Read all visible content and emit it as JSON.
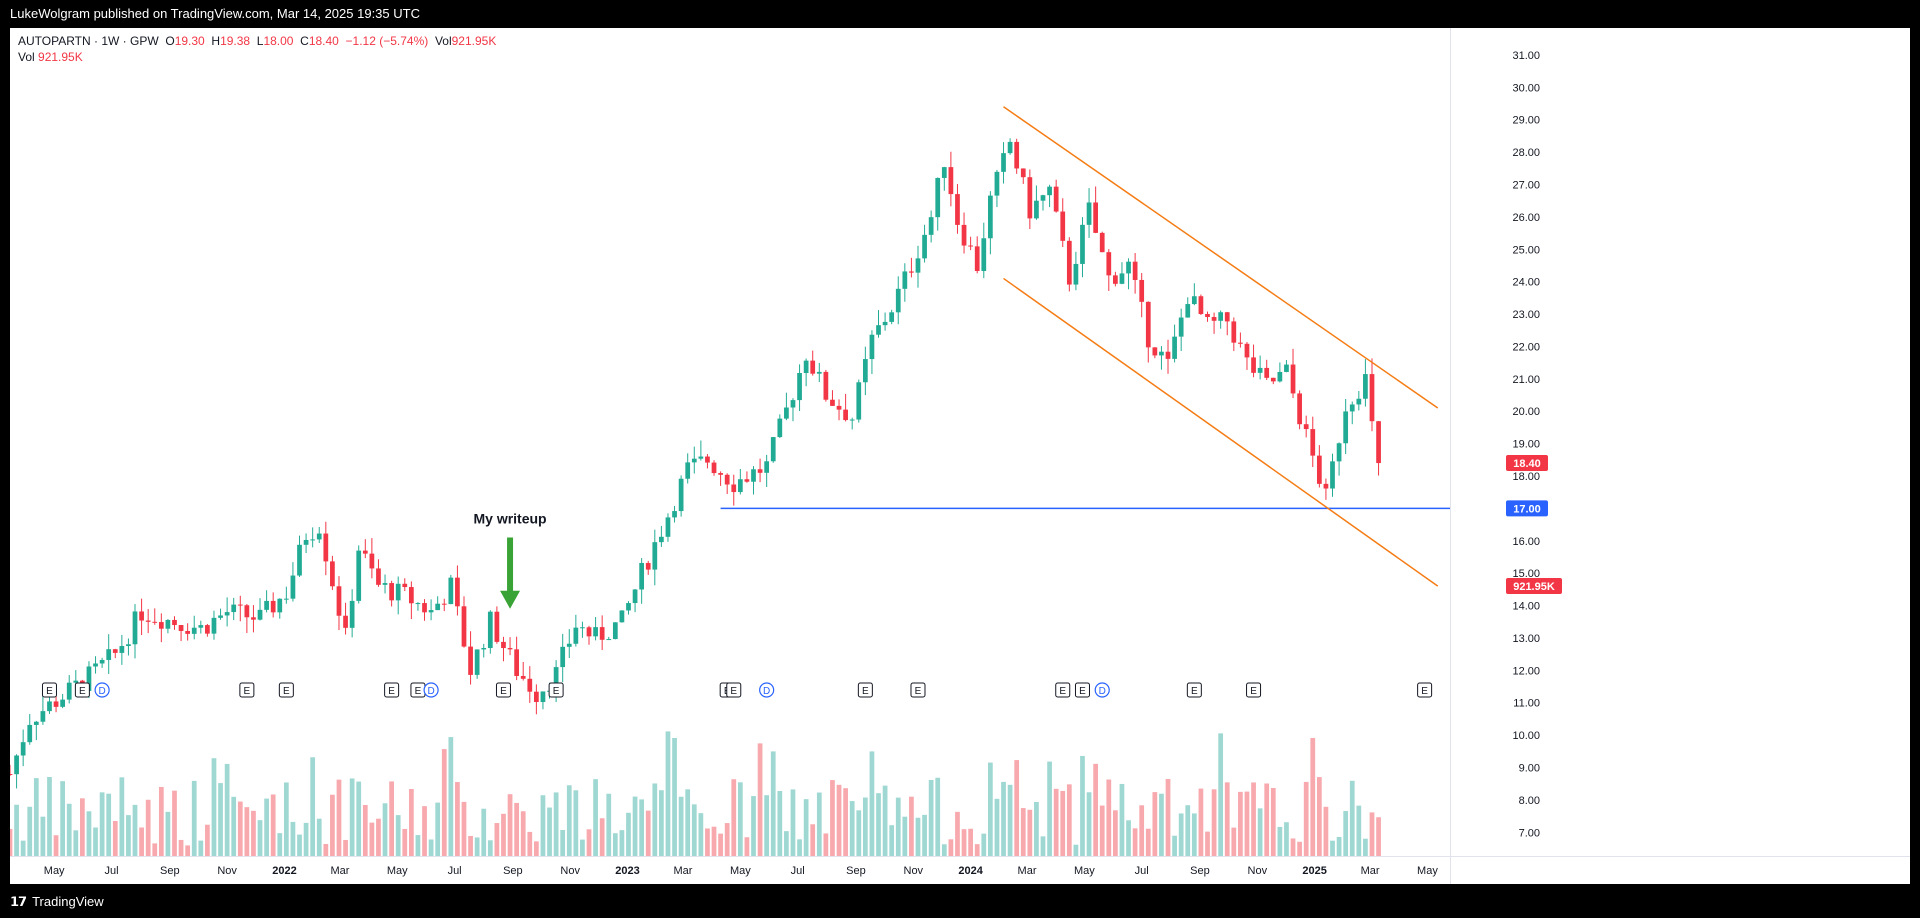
{
  "header": {
    "published": "LukeWolgram published on TradingView.com, Mar 14, 2025 19:35 UTC"
  },
  "footer": {
    "brand": "TradingView"
  },
  "legend": {
    "symbol": "AUTOPARTN · 1W · GPW",
    "o_label": "O",
    "o": "19.30",
    "h_label": "H",
    "h": "19.38",
    "l_label": "L",
    "l": "18.00",
    "c_label": "C",
    "c": "18.40",
    "change": "−1.12 (−5.74%)",
    "vol_label": "Vol",
    "vol": "921.95K"
  },
  "colors": {
    "up": "#22ab94",
    "down": "#f23645",
    "vol_up": "#9fd8d2",
    "vol_down": "#f7a9ae",
    "channel": "#f57c14",
    "support": "#2962ff",
    "arrow": "#3aa336"
  },
  "annotation": {
    "text": "My writeup"
  },
  "chart_data": {
    "type": "candlestick",
    "price_axis": {
      "ylim": [
        6.7,
        31.4
      ],
      "ticks": [
        "7.00",
        "8.00",
        "9.00",
        "10.00",
        "11.00",
        "12.00",
        "13.00",
        "14.00",
        "15.00",
        "16.00",
        "17.00",
        "18.00",
        "19.00",
        "20.00",
        "21.00",
        "22.00",
        "23.00",
        "24.00",
        "25.00",
        "26.00",
        "27.00",
        "28.00",
        "29.00",
        "30.00",
        "31.00"
      ]
    },
    "time_axis": {
      "start": "2021-03-15",
      "end": "2025-05-25",
      "labels": [
        "May",
        "Jul",
        "Sep",
        "Nov",
        "2022",
        "Mar",
        "May",
        "Jul",
        "Sep",
        "Nov",
        "2023",
        "Mar",
        "May",
        "Jul",
        "Sep",
        "Nov",
        "2024",
        "Mar",
        "May",
        "Jul",
        "Sep",
        "Nov",
        "2025",
        "Mar",
        "May"
      ]
    },
    "last_price_label": "18.40",
    "support_label": "17.00",
    "volume_label": "921.95K",
    "support_level": {
      "price": 17.0,
      "from": "2023-04-10"
    },
    "channel": {
      "upper": [
        [
          "2024-02-05",
          29.4
        ],
        [
          "2025-05-12",
          20.1
        ]
      ],
      "lower": [
        [
          "2024-02-05",
          24.1
        ],
        [
          "2025-05-12",
          14.6
        ]
      ]
    },
    "arrow": {
      "date": "2022-08-29",
      "from_price": 16.1,
      "to_price": 13.9
    },
    "price_waypoints": [
      [
        "2021-03-15",
        8.8
      ],
      [
        "2021-04-05",
        10.5
      ],
      [
        "2021-05-10",
        11.2
      ],
      [
        "2021-06-07",
        11.8
      ],
      [
        "2021-07-05",
        12.5
      ],
      [
        "2021-08-02",
        13.8
      ],
      [
        "2021-09-06",
        13.5
      ],
      [
        "2021-10-04",
        13.3
      ],
      [
        "2021-11-01",
        13.8
      ],
      [
        "2021-12-06",
        13.6
      ],
      [
        "2022-01-03",
        14.4
      ],
      [
        "2022-01-24",
        16.2
      ],
      [
        "2022-02-07",
        16.5
      ],
      [
        "2022-03-07",
        13.0
      ],
      [
        "2022-03-21",
        15.8
      ],
      [
        "2022-04-11",
        14.6
      ],
      [
        "2022-05-09",
        14.3
      ],
      [
        "2022-06-06",
        13.8
      ],
      [
        "2022-06-27",
        14.6
      ],
      [
        "2022-07-18",
        12.0
      ],
      [
        "2022-08-08",
        13.5
      ],
      [
        "2022-09-05",
        12.0
      ],
      [
        "2022-09-26",
        11.3
      ],
      [
        "2022-10-17",
        11.9
      ],
      [
        "2022-11-07",
        13.4
      ],
      [
        "2022-11-28",
        13.0
      ],
      [
        "2022-12-26",
        13.5
      ],
      [
        "2023-01-16",
        15.0
      ],
      [
        "2023-02-13",
        16.8
      ],
      [
        "2023-03-06",
        18.2
      ],
      [
        "2023-03-27",
        18.5
      ],
      [
        "2023-04-24",
        17.8
      ],
      [
        "2023-05-29",
        18.3
      ],
      [
        "2023-06-19",
        20.0
      ],
      [
        "2023-07-10",
        21.8
      ],
      [
        "2023-07-31",
        20.5
      ],
      [
        "2023-08-28",
        19.8
      ],
      [
        "2023-09-18",
        22.2
      ],
      [
        "2023-10-09",
        23.2
      ],
      [
        "2023-10-30",
        24.5
      ],
      [
        "2023-11-20",
        26.0
      ],
      [
        "2023-12-04",
        27.8
      ],
      [
        "2023-12-18",
        25.9
      ],
      [
        "2024-01-08",
        24.5
      ],
      [
        "2024-01-22",
        26.5
      ],
      [
        "2024-02-12",
        28.3
      ],
      [
        "2024-03-04",
        26.2
      ],
      [
        "2024-03-25",
        26.8
      ],
      [
        "2024-04-15",
        24.1
      ],
      [
        "2024-05-06",
        26.2
      ],
      [
        "2024-05-27",
        24.1
      ],
      [
        "2024-06-17",
        24.5
      ],
      [
        "2024-07-08",
        22.3
      ],
      [
        "2024-07-29",
        21.4
      ],
      [
        "2024-08-19",
        23.6
      ],
      [
        "2024-09-09",
        22.6
      ],
      [
        "2024-09-30",
        22.8
      ],
      [
        "2024-10-21",
        21.5
      ],
      [
        "2024-11-11",
        20.8
      ],
      [
        "2024-12-02",
        21.2
      ],
      [
        "2024-12-23",
        19.2
      ],
      [
        "2025-01-13",
        17.3
      ],
      [
        "2025-02-03",
        20.2
      ],
      [
        "2025-02-24",
        21.0
      ],
      [
        "2025-03-03",
        19.5
      ],
      [
        "2025-03-10",
        18.4
      ]
    ],
    "events": [
      {
        "type": "E",
        "date": "2021-04-26"
      },
      {
        "type": "E",
        "date": "2021-05-31"
      },
      {
        "type": "D",
        "date": "2021-06-21"
      },
      {
        "type": "E",
        "date": "2021-11-22"
      },
      {
        "type": "E",
        "date": "2022-01-03"
      },
      {
        "type": "E",
        "date": "2022-04-25"
      },
      {
        "type": "E",
        "date": "2022-05-23"
      },
      {
        "type": "D",
        "date": "2022-06-06"
      },
      {
        "type": "E",
        "date": "2022-08-22"
      },
      {
        "type": "E",
        "date": "2022-10-17"
      },
      {
        "type": "E",
        "date": "2023-04-17"
      },
      {
        "type": "E",
        "date": "2023-04-24"
      },
      {
        "type": "D",
        "date": "2023-05-29"
      },
      {
        "type": "E",
        "date": "2023-09-11"
      },
      {
        "type": "E",
        "date": "2023-11-06"
      },
      {
        "type": "E",
        "date": "2024-04-08"
      },
      {
        "type": "E",
        "date": "2024-04-29"
      },
      {
        "type": "D",
        "date": "2024-05-20"
      },
      {
        "type": "E",
        "date": "2024-08-26"
      },
      {
        "type": "E",
        "date": "2024-10-28"
      },
      {
        "type": "E",
        "date": "2025-04-28"
      }
    ]
  }
}
